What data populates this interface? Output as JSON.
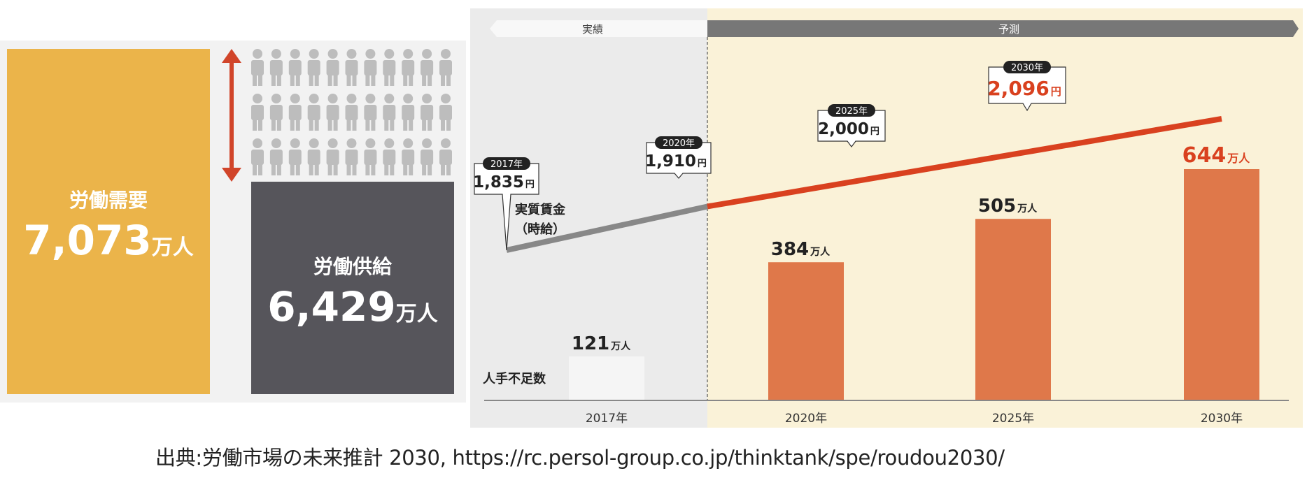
{
  "left": {
    "demand_label": "労働需要",
    "demand_value": "7,073",
    "demand_unit": "万人",
    "supply_label": "労働供給",
    "supply_value": "6,429",
    "supply_unit": "万人",
    "colors": {
      "demand": "#ebb44a",
      "supply": "#56555b",
      "arrow": "#d1452a",
      "person": "#bdbdbd"
    }
  },
  "chart_data": {
    "type": "bar",
    "header_actual": "実績",
    "header_forecast": "予測",
    "categories": [
      "2017年",
      "2020年",
      "2025年",
      "2030年"
    ],
    "shortage_label": "人手不足数",
    "shortage_values": [
      121,
      384,
      505,
      644
    ],
    "shortage_unit": "万人",
    "wage_label_line1": "実質賃金",
    "wage_label_line2": "（時給）",
    "wage_years": [
      "2017年",
      "2020年",
      "2025年",
      "2030年"
    ],
    "wage_values": [
      1835,
      1910,
      2000,
      2096
    ],
    "wage_texts": [
      "1,835",
      "1,910",
      "2,000",
      "2,096"
    ],
    "wage_unit": "円",
    "colors": {
      "bar": "#df784a",
      "bar_actual": "#f5f5f5",
      "line": "#d9411f",
      "line_actual": "#888888",
      "forecast_bg": "#faf2d8",
      "actual_bg": "#ebebeb",
      "highlight": "#d9411f"
    }
  },
  "source": "出典:労働市場の未来推計 2030, https://rc.persol-group.co.jp/thinktank/spe/roudou2030/"
}
